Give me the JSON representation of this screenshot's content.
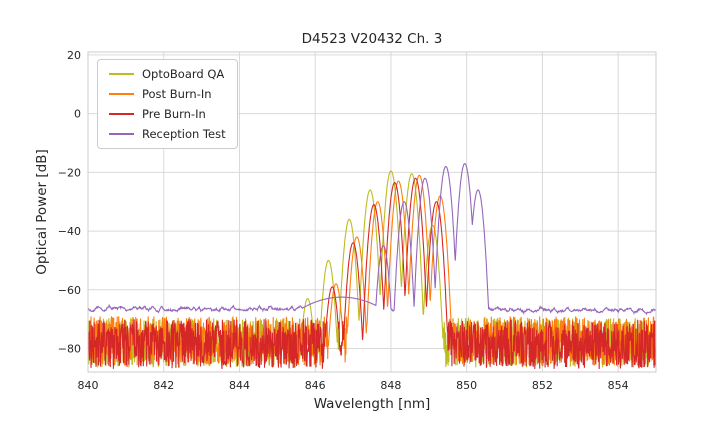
{
  "chart_data": {
    "type": "line",
    "title": "D4523 V20432 Ch. 3",
    "xlabel": "Wavelength [nm]",
    "ylabel": "Optical Power [dB]",
    "xlim": [
      840,
      855
    ],
    "ylim": [
      -88,
      21
    ],
    "xticks": [
      840,
      842,
      844,
      846,
      848,
      850,
      852,
      854
    ],
    "yticks": [
      20,
      0,
      -20,
      -40,
      -60,
      -80
    ],
    "grid": true,
    "grid_color": "#d9d9d9",
    "spine_color": "#cccccc",
    "legend_position": "upper left",
    "series": [
      {
        "name": "OptoBoard QA",
        "color": "#bcbd22",
        "floor": -78,
        "floor_jitter": 8.5,
        "floor_slope": 0,
        "smooth_noise": false,
        "mode_half_width": 0.275,
        "valley_drop": 40,
        "peaks": [
          [
            845.8,
            -63
          ],
          [
            846.35,
            -50
          ],
          [
            846.9,
            -36
          ],
          [
            847.45,
            -26
          ],
          [
            848.0,
            -19.5
          ],
          [
            848.55,
            -20.5
          ],
          [
            849.1,
            -38
          ]
        ],
        "bumps": []
      },
      {
        "name": "Post Burn-In",
        "color": "#ff7f0e",
        "floor": -77.5,
        "floor_jitter": 8.5,
        "floor_slope": 0,
        "smooth_noise": false,
        "mode_half_width": 0.275,
        "valley_drop": 40,
        "peaks": [
          [
            846.55,
            -58
          ],
          [
            847.1,
            -42
          ],
          [
            847.65,
            -30
          ],
          [
            848.2,
            -23
          ],
          [
            848.75,
            -21
          ],
          [
            849.3,
            -28
          ]
        ],
        "bumps": []
      },
      {
        "name": "Pre Burn-In",
        "color": "#d62728",
        "floor": -78.5,
        "floor_jitter": 8.5,
        "floor_slope": 0,
        "smooth_noise": false,
        "mode_half_width": 0.275,
        "valley_drop": 40,
        "peaks": [
          [
            846.45,
            -59
          ],
          [
            847.0,
            -44
          ],
          [
            847.55,
            -31
          ],
          [
            848.1,
            -23.5
          ],
          [
            848.65,
            -22
          ],
          [
            849.2,
            -30
          ]
        ],
        "bumps": []
      },
      {
        "name": "Reception Test",
        "color": "#9467bd",
        "floor": -66.3,
        "floor_jitter": 1.1,
        "floor_slope": -0.05,
        "smooth_noise": true,
        "mode_half_width": 0.275,
        "valley_drop": 40,
        "peaks": [
          [
            847.8,
            -45
          ],
          [
            848.35,
            -30
          ],
          [
            848.9,
            -22
          ],
          [
            849.45,
            -18
          ],
          [
            849.95,
            -17
          ],
          [
            850.3,
            -26
          ]
        ],
        "bumps": [
          [
            846.7,
            -62.5,
            1.2,
            5
          ]
        ]
      }
    ]
  }
}
